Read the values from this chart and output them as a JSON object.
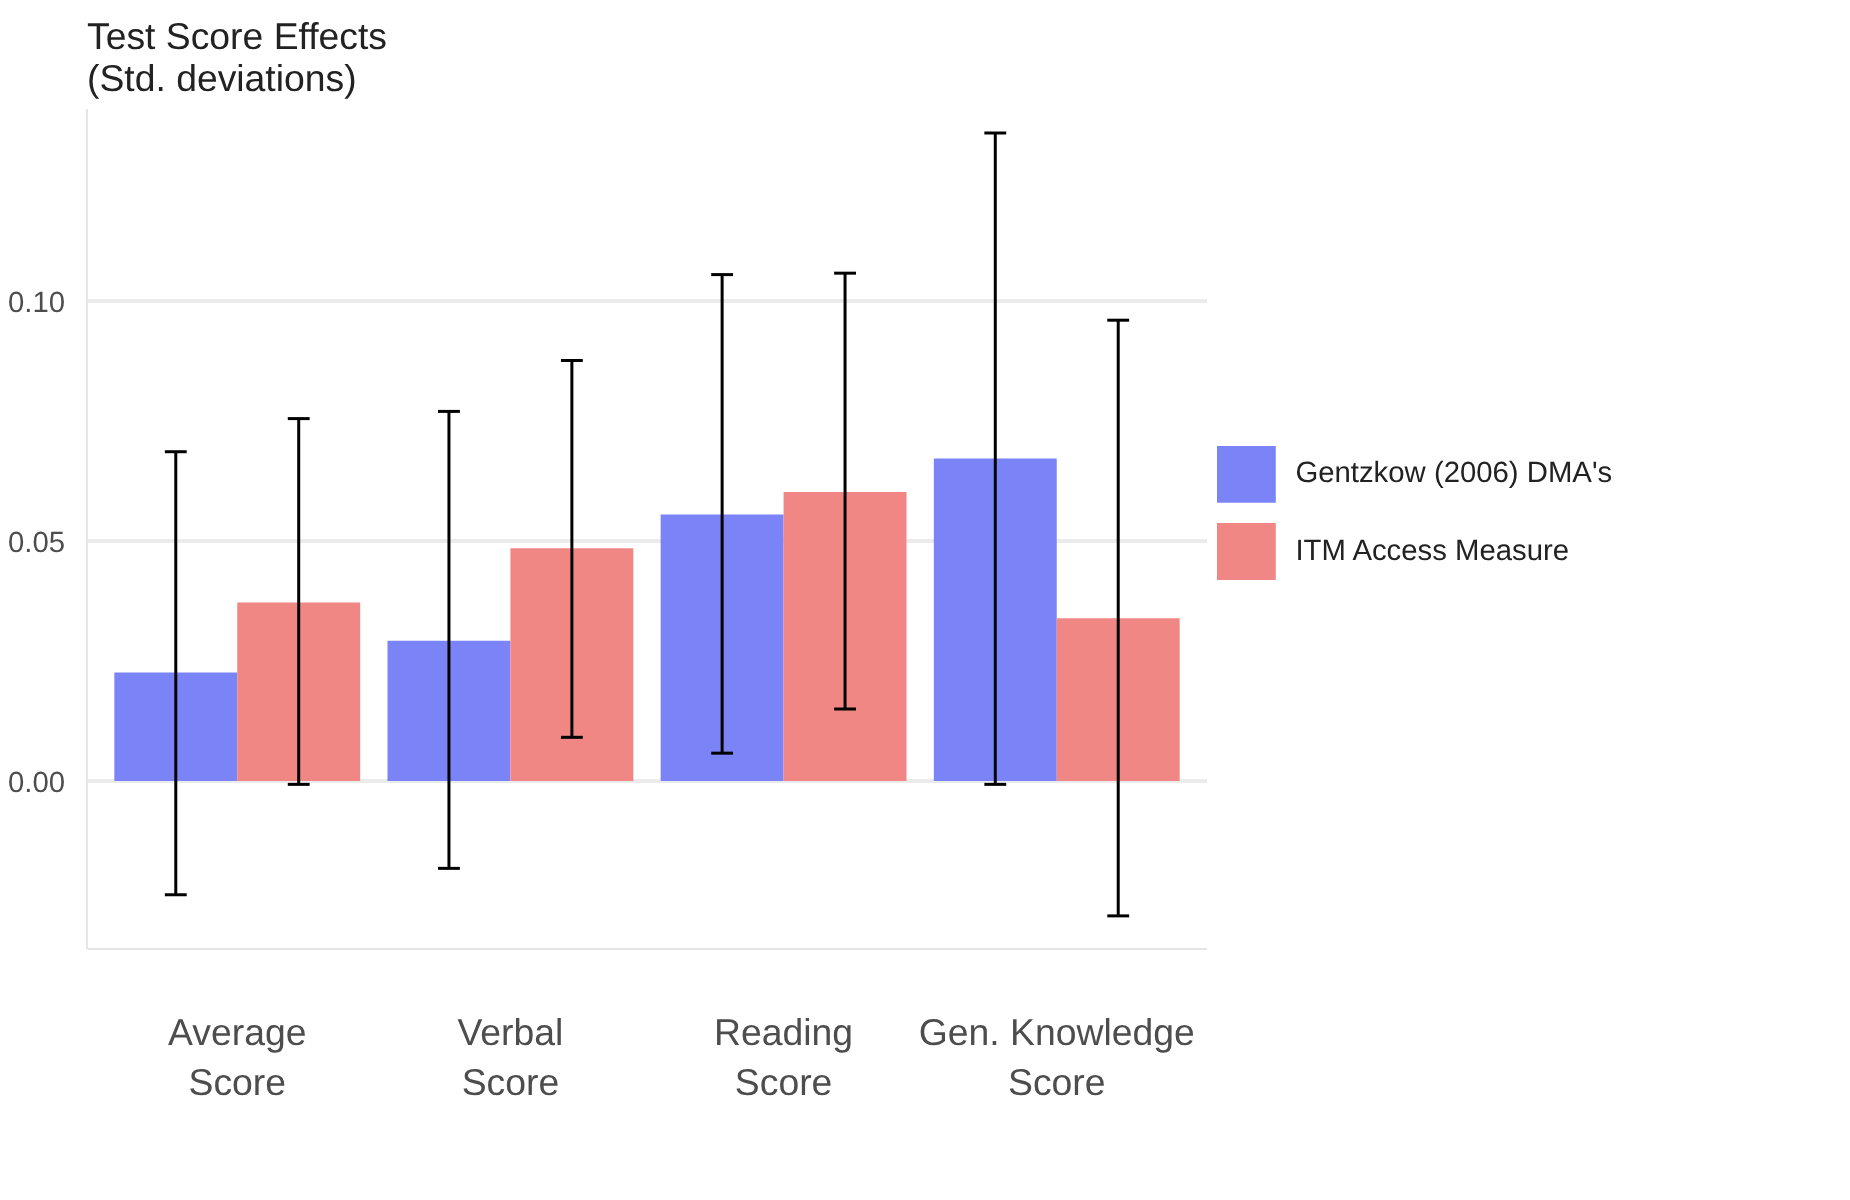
{
  "chart_data": {
    "type": "bar",
    "ylabel": "Test Score Effects\n(Std. deviations)",
    "categories": [
      "Average Score",
      "Verbal Score",
      "Reading Score",
      "Gen. Knowledge Score"
    ],
    "series": [
      {
        "name": "Gentzkow (2006) DMA's",
        "color": "#7b84f7",
        "values": [
          0.0226,
          0.0292,
          0.0555,
          0.0672
        ],
        "errors": [
          [
            -0.0237,
            0.0686
          ],
          [
            -0.0182,
            0.077
          ],
          [
            0.0058,
            0.1055
          ],
          [
            -0.0007,
            0.135
          ]
        ]
      },
      {
        "name": "ITM Access Measure",
        "color": "#f08784",
        "values": [
          0.0372,
          0.0485,
          0.0602,
          0.0339
        ],
        "errors": [
          [
            -0.0007,
            0.0755
          ],
          [
            0.0091,
            0.0876
          ],
          [
            0.015,
            0.1058
          ],
          [
            -0.0281,
            0.096
          ]
        ]
      }
    ],
    "yticks": [
      {
        "value": 0,
        "label": "0.00"
      },
      {
        "value": 0.05,
        "label": "0.05"
      },
      {
        "value": 0.1,
        "label": "0.10"
      }
    ],
    "ylim": [
      -0.035,
      0.14
    ],
    "grid": "y",
    "legend": "right"
  }
}
